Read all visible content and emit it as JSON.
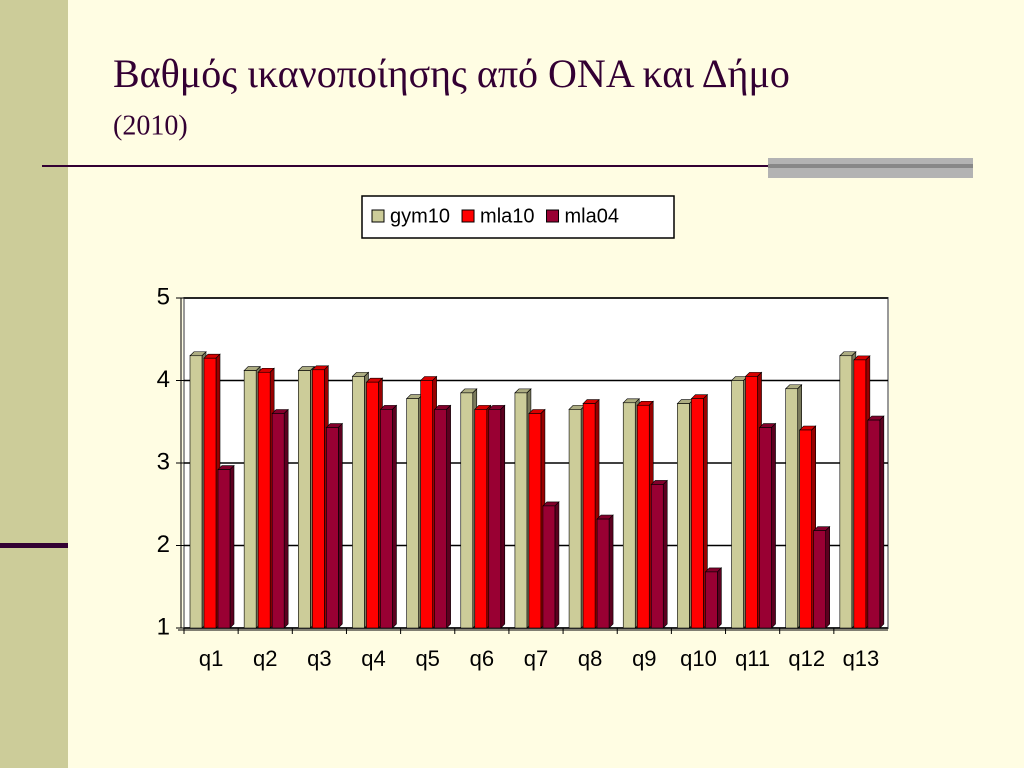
{
  "chart_data": {
    "type": "bar",
    "title": "Βαθμός ικανοποίησης από ΟΝΑ και Δήμο",
    "subtitle": "(2010)",
    "categories": [
      "q1",
      "q2",
      "q3",
      "q4",
      "q5",
      "q6",
      "q7",
      "q8",
      "q9",
      "q10",
      "q11",
      "q12",
      "q13"
    ],
    "series": [
      {
        "name": "gym10",
        "color": "#cccc99",
        "values": [
          4.3,
          4.12,
          4.12,
          4.05,
          3.78,
          3.85,
          3.85,
          3.65,
          3.73,
          3.72,
          4.0,
          3.9,
          4.3
        ]
      },
      {
        "name": "mla10",
        "color": "#ff0000",
        "values": [
          4.27,
          4.1,
          4.13,
          3.98,
          4.0,
          3.65,
          3.6,
          3.72,
          3.7,
          3.78,
          4.05,
          3.4,
          4.25
        ]
      },
      {
        "name": "mla04",
        "color": "#990033",
        "values": [
          2.92,
          3.6,
          3.43,
          3.65,
          3.65,
          3.65,
          2.48,
          2.32,
          2.74,
          1.68,
          3.43,
          2.18,
          3.52
        ]
      }
    ],
    "ylim": [
      1,
      5
    ],
    "yticks": [
      1,
      2,
      3,
      4,
      5
    ],
    "grid": true
  }
}
